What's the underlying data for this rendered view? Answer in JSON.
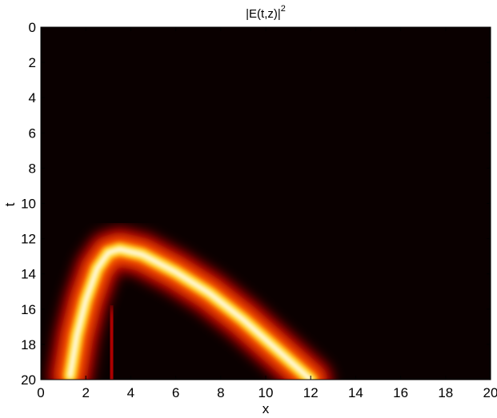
{
  "chart_data": {
    "type": "heatmap",
    "title": {
      "main": "|E(t,z)|",
      "superscript": "2"
    },
    "xlabel": "x",
    "ylabel": "t",
    "xlim": [
      0,
      20
    ],
    "ylim": [
      0,
      20
    ],
    "y_axis_direction": "top-to-bottom",
    "x_ticks": [
      "0",
      "2",
      "4",
      "6",
      "8",
      "10",
      "12",
      "14",
      "16",
      "18",
      "20"
    ],
    "y_ticks": [
      "0",
      "2",
      "4",
      "6",
      "8",
      "10",
      "12",
      "14",
      "16",
      "18",
      "20"
    ],
    "colormap": "hot",
    "colormap_stops": [
      "#0a0000",
      "#c00000",
      "#ff5000",
      "#ffd000",
      "#ffffff"
    ],
    "background_color": "#0a0000",
    "features": [
      {
        "name": "main-arc",
        "description_of_shape": "bright curved band",
        "path": [
          {
            "x": 1.3,
            "t": 19.8
          },
          {
            "x": 1.6,
            "t": 17.5
          },
          {
            "x": 2.0,
            "t": 15.5
          },
          {
            "x": 2.5,
            "t": 13.7
          },
          {
            "x": 3.0,
            "t": 12.8
          },
          {
            "x": 3.5,
            "t": 12.6
          },
          {
            "x": 4.5,
            "t": 12.9
          },
          {
            "x": 6.0,
            "t": 13.9
          },
          {
            "x": 7.5,
            "t": 15.1
          },
          {
            "x": 9.0,
            "t": 16.6
          },
          {
            "x": 10.5,
            "t": 18.3
          },
          {
            "x": 12.0,
            "t": 20.0
          }
        ],
        "peak_intensity_range": [
          0.55,
          1.0
        ]
      },
      {
        "name": "lower-lobe",
        "path": [
          {
            "x": 3.2,
            "t": 16.5
          },
          {
            "x": 3.1,
            "t": 20.0
          }
        ],
        "peak_intensity_range": [
          0.18,
          0.24
        ]
      }
    ]
  }
}
